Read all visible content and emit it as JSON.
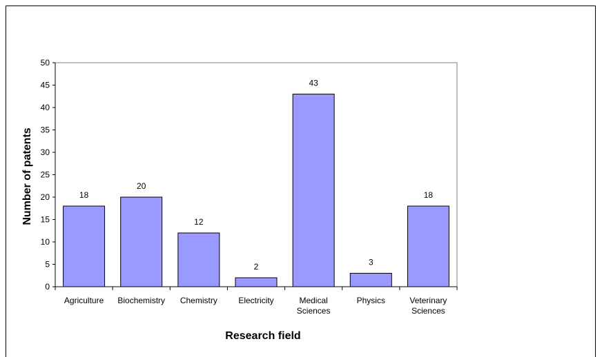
{
  "chart_data": {
    "type": "bar",
    "categories": [
      [
        "Agriculture"
      ],
      [
        "Biochemistry"
      ],
      [
        "Chemistry"
      ],
      [
        "Electricity"
      ],
      [
        "Medical",
        "Sciences"
      ],
      [
        "Physics"
      ],
      [
        "Veterinary",
        "Sciences"
      ]
    ],
    "values": [
      18,
      20,
      12,
      2,
      43,
      3,
      18
    ],
    "xlabel": "Research field",
    "ylabel": "Number of patents",
    "ylim": [
      0,
      50
    ],
    "yticks": [
      0,
      5,
      10,
      15,
      20,
      25,
      30,
      35,
      40,
      45,
      50
    ],
    "bar_color": "#9999ff",
    "grid": false,
    "data_labels": true
  }
}
